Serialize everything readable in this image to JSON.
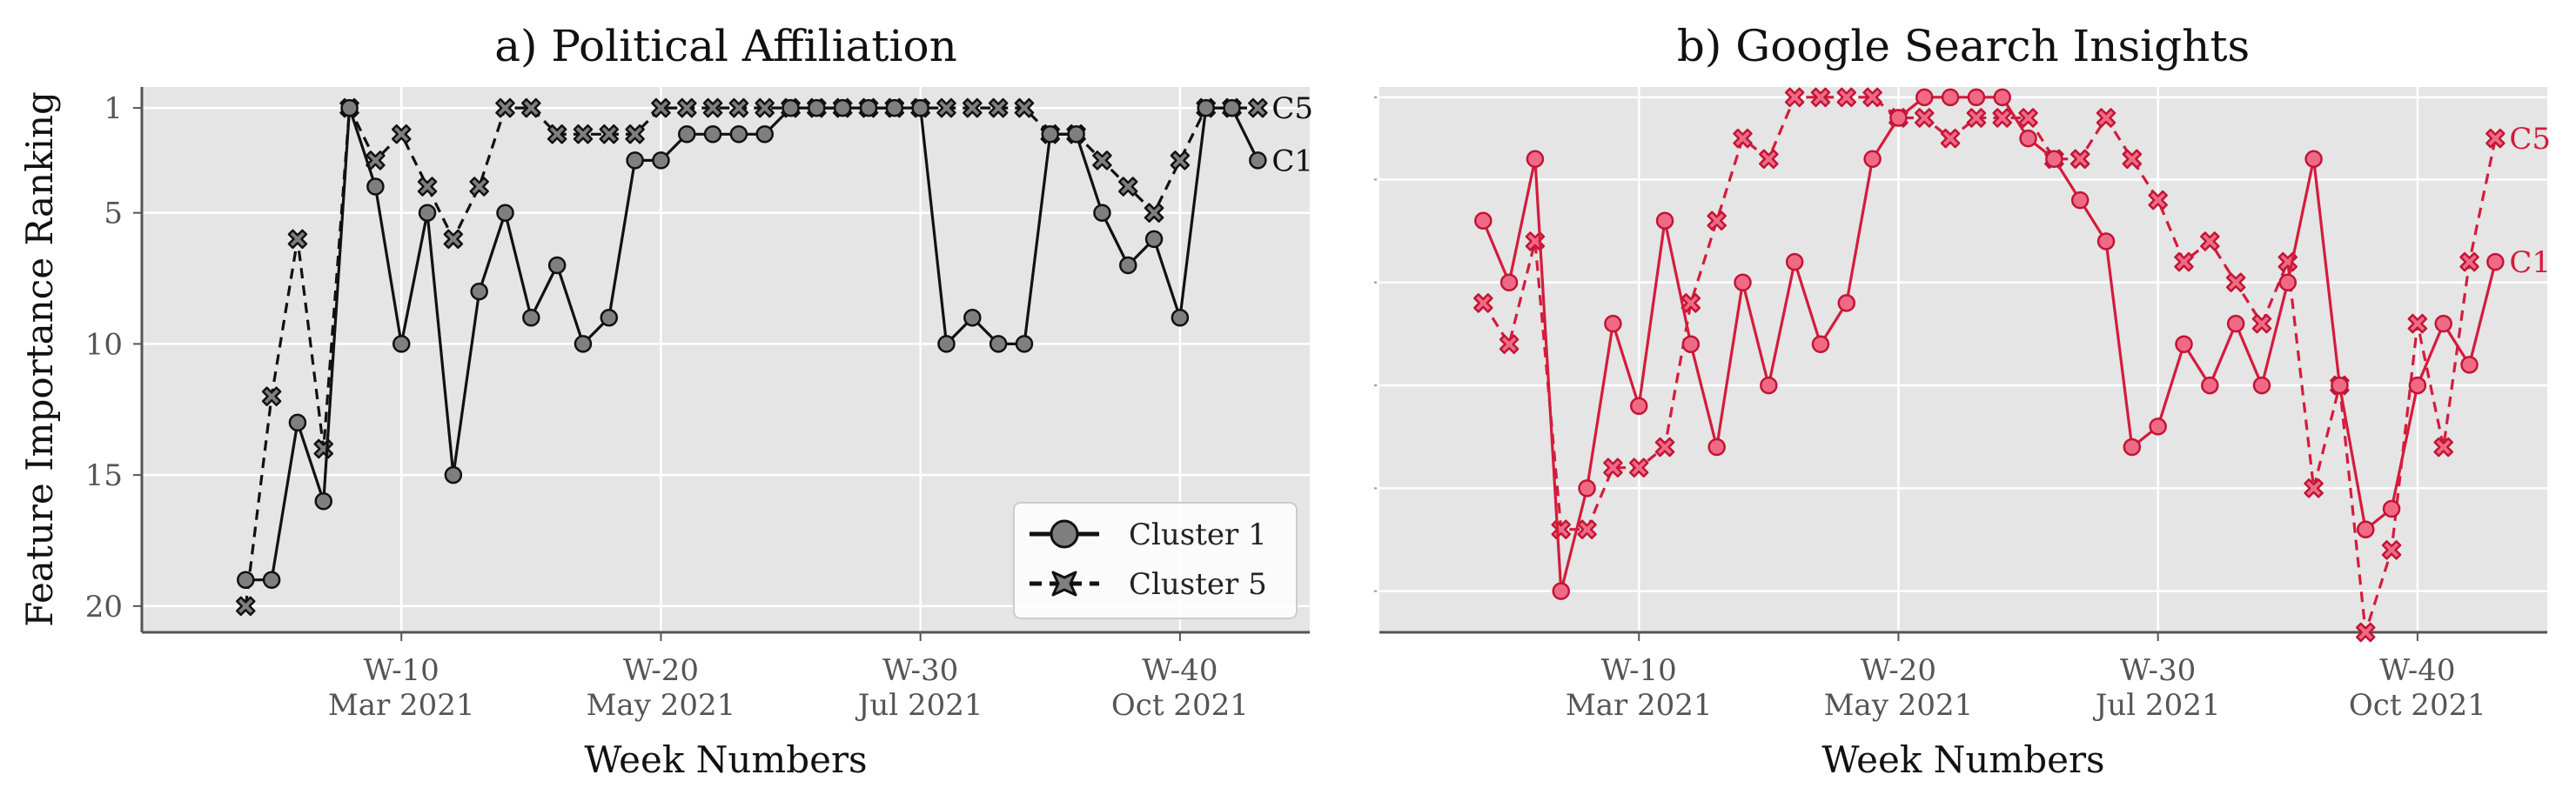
{
  "chart_data": [
    {
      "type": "line",
      "title": "a) Political Affiliation",
      "xlabel": "Week Numbers",
      "ylabel": "Feature Importance Ranking",
      "x": [
        4,
        5,
        6,
        7,
        8,
        9,
        10,
        11,
        12,
        13,
        14,
        15,
        16,
        17,
        18,
        19,
        20,
        21,
        22,
        23,
        24,
        25,
        26,
        27,
        28,
        29,
        30,
        31,
        32,
        33,
        34,
        35,
        36,
        37,
        38,
        39,
        40,
        41,
        42,
        43
      ],
      "xlim": [
        0,
        45
      ],
      "ylim": [
        21,
        0.2
      ],
      "y_inverted": true,
      "grid": true,
      "ytick_labels": [
        "1",
        "5",
        "10",
        "15",
        "20"
      ],
      "ytick_values": [
        1,
        5,
        10,
        15,
        20
      ],
      "xticks": [
        {
          "week": 10,
          "week_label": "W-10",
          "month_label": "Mar 2021"
        },
        {
          "week": 20,
          "week_label": "W-20",
          "month_label": "May 2021"
        },
        {
          "week": 30,
          "week_label": "W-30",
          "month_label": "Jul 2021"
        },
        {
          "week": 40,
          "week_label": "W-40",
          "month_label": "Oct 2021"
        }
      ],
      "legend": {
        "placement": "bottom-right",
        "show": true
      },
      "series": [
        {
          "name": "Cluster 1",
          "end_label": "C1",
          "marker": "circle",
          "linestyle": "solid",
          "line_color": "#111111",
          "marker_fill": "#7f7f7f",
          "marker_edge": "#111111",
          "values": [
            19,
            19,
            13,
            16,
            1,
            4,
            10,
            5,
            15,
            8,
            5,
            9,
            7,
            10,
            9,
            3,
            3,
            2,
            2,
            2,
            2,
            1,
            1,
            1,
            1,
            1,
            1,
            10,
            9,
            10,
            10,
            2,
            2,
            5,
            7,
            6,
            9,
            1,
            1,
            3
          ]
        },
        {
          "name": "Cluster 5",
          "end_label": "C5",
          "marker": "x",
          "linestyle": "dashed",
          "line_color": "#111111",
          "marker_fill": "#7f7f7f",
          "marker_edge": "#111111",
          "values": [
            20,
            12,
            6,
            14,
            1,
            3,
            2,
            4,
            6,
            4,
            1,
            1,
            2,
            2,
            2,
            2,
            1,
            1,
            1,
            1,
            1,
            1,
            1,
            1,
            1,
            1,
            1,
            1,
            1,
            1,
            1,
            2,
            2,
            3,
            4,
            5,
            3,
            1,
            1,
            1
          ]
        }
      ]
    },
    {
      "type": "line",
      "title": "b) Google Search Insights",
      "xlabel": "Week Numbers",
      "ylabel": "",
      "x": [
        4,
        5,
        6,
        7,
        8,
        9,
        10,
        11,
        12,
        13,
        14,
        15,
        16,
        17,
        18,
        19,
        20,
        21,
        22,
        23,
        24,
        25,
        26,
        27,
        28,
        29,
        30,
        31,
        32,
        33,
        34,
        35,
        36,
        37,
        38,
        39,
        40,
        41,
        42,
        43
      ],
      "xlim": [
        0,
        45
      ],
      "ylim": [
        27,
        0.5
      ],
      "y_inverted": true,
      "grid": true,
      "ytick_values": [
        1,
        5,
        10,
        15,
        20,
        25
      ],
      "ytick_labels_hidden": true,
      "xticks": [
        {
          "week": 10,
          "week_label": "W-10",
          "month_label": "Mar 2021"
        },
        {
          "week": 20,
          "week_label": "W-20",
          "month_label": "May 2021"
        },
        {
          "week": 30,
          "week_label": "W-30",
          "month_label": "Jul 2021"
        },
        {
          "week": 40,
          "week_label": "W-40",
          "month_label": "Oct 2021"
        }
      ],
      "legend": {
        "show": false
      },
      "series": [
        {
          "name": "Cluster 1",
          "end_label": "C1",
          "marker": "circle",
          "linestyle": "solid",
          "line_color": "#d41c3c",
          "marker_fill": "#f06a86",
          "marker_edge": "#c21535",
          "values": [
            7,
            10,
            4,
            25,
            20,
            12,
            16,
            7,
            13,
            18,
            10,
            15,
            9,
            13,
            11,
            4,
            2,
            1,
            1,
            1,
            1,
            3,
            4,
            6,
            8,
            18,
            17,
            13,
            15,
            12,
            15,
            10,
            4,
            15,
            22,
            21,
            15,
            12,
            14,
            9
          ]
        },
        {
          "name": "Cluster 5",
          "end_label": "C5",
          "marker": "x",
          "linestyle": "dashed",
          "line_color": "#d41c3c",
          "marker_fill": "#f06a86",
          "marker_edge": "#c21535",
          "values": [
            11,
            13,
            8,
            22,
            22,
            19,
            19,
            18,
            11,
            7,
            3,
            4,
            1,
            1,
            1,
            1,
            2,
            2,
            3,
            2,
            2,
            2,
            4,
            4,
            2,
            4,
            6,
            9,
            8,
            10,
            12,
            9,
            20,
            15,
            27,
            23,
            12,
            18,
            9,
            3
          ]
        }
      ]
    }
  ]
}
